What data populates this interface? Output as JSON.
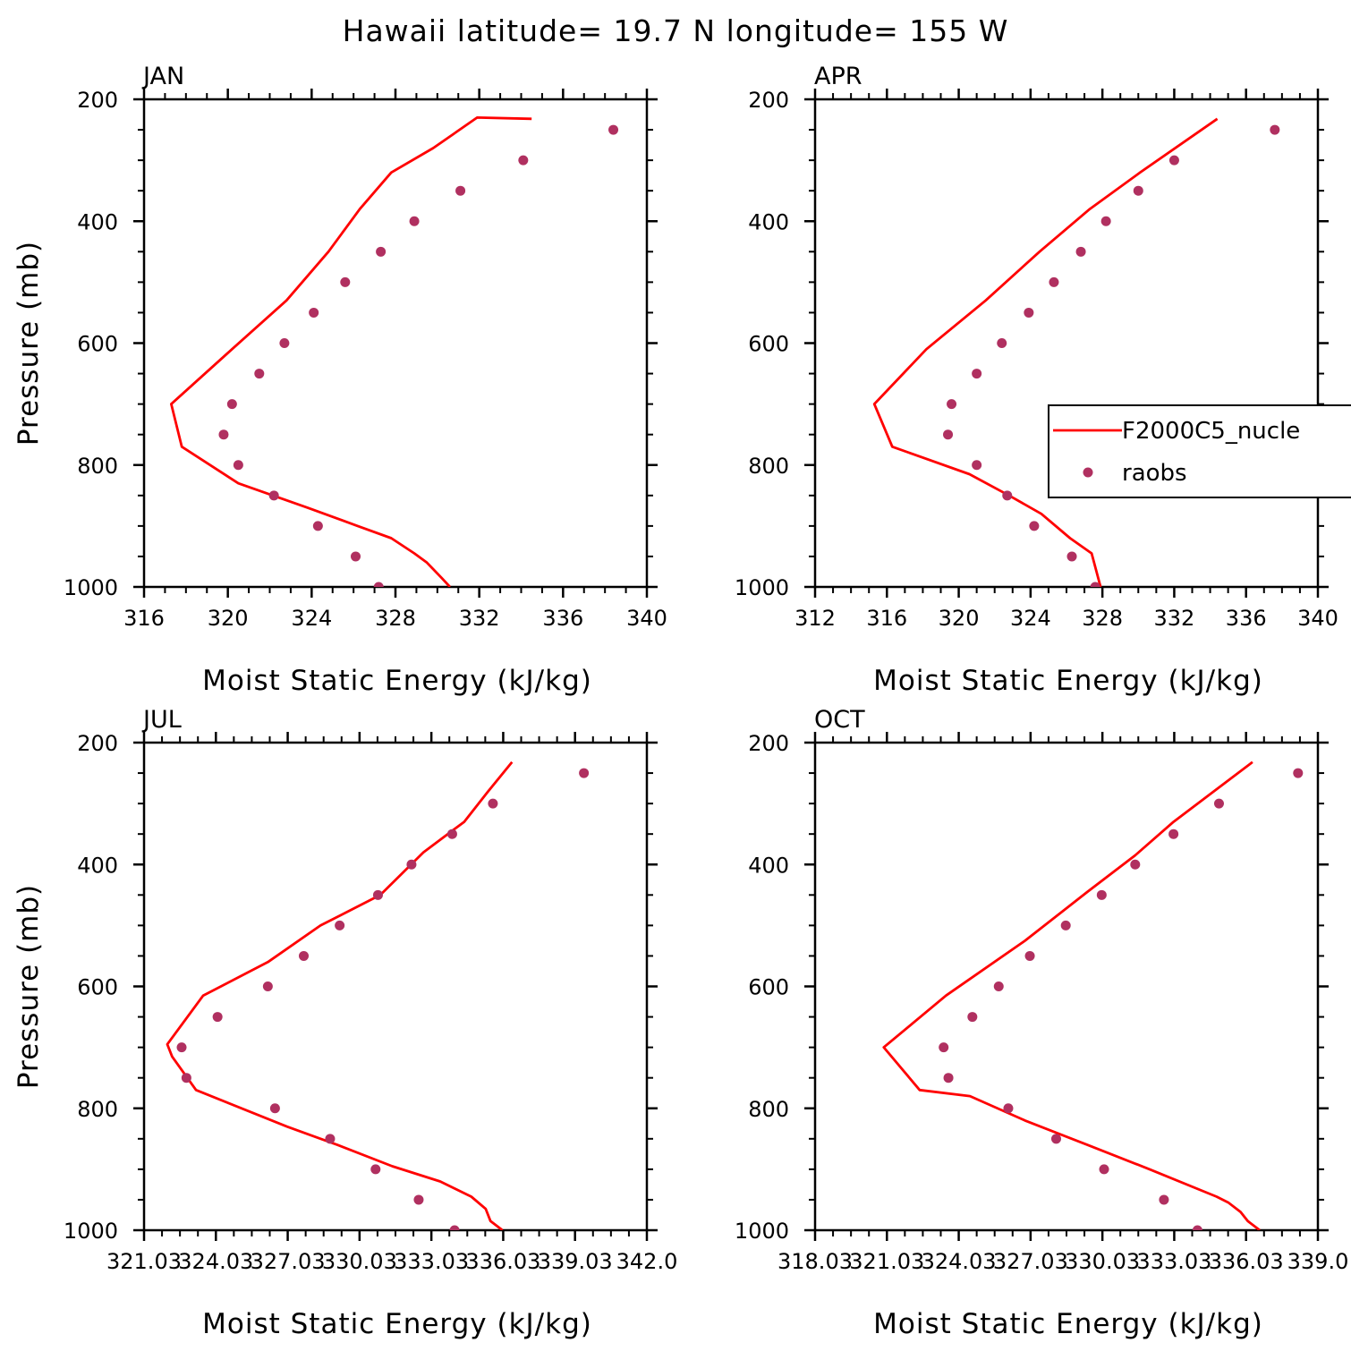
{
  "figure": {
    "title": "Hawaii  latitude= 19.7 N longitude= 155 W"
  },
  "colors": {
    "model": "#ff0000",
    "obs": "#b03060",
    "axis": "#000000"
  },
  "legend": {
    "panel": "APR",
    "entries": [
      {
        "name": "F2000C5_nucle",
        "kind": "line"
      },
      {
        "name": "raobs",
        "kind": "marker"
      }
    ]
  },
  "chart_data": [
    {
      "type": "line",
      "panel_title": "JAN",
      "xlabel": "Moist Static Energy (kJ/kg)",
      "ylabel": "Pressure (mb)",
      "xlim": [
        316,
        340
      ],
      "ylim": [
        1000,
        200
      ],
      "x_ticks": [
        316,
        320,
        324,
        328,
        332,
        336,
        340
      ],
      "x_tick_labels": [
        "316",
        "320",
        "324",
        "328",
        "332",
        "336",
        "340"
      ],
      "y_ticks": [
        200,
        400,
        600,
        800,
        1000
      ],
      "y_tick_labels": [
        "200",
        "400",
        "600",
        "800",
        "1000"
      ],
      "series": [
        {
          "name": "F2000C5_nucle",
          "style": "line",
          "x": [
            330.6,
            330.2,
            329.5,
            328.9,
            327.8,
            326.2,
            323.8,
            320.5,
            317.8,
            317.3,
            320.2,
            322.8,
            324.8,
            326.3,
            327.8,
            329.8,
            331.9,
            334.5
          ],
          "y": [
            1000,
            985,
            960,
            945,
            920,
            900,
            870,
            830,
            770,
            700,
            610,
            530,
            450,
            380,
            320,
            280,
            230,
            232
          ]
        },
        {
          "name": "raobs",
          "style": "marker",
          "x": [
            327.2,
            326.1,
            324.3,
            322.2,
            320.5,
            319.8,
            320.2,
            321.5,
            322.7,
            324.1,
            325.6,
            327.3,
            328.9,
            331.1,
            334.1,
            338.4
          ],
          "y": [
            1000,
            950,
            900,
            850,
            800,
            750,
            700,
            650,
            600,
            550,
            500,
            450,
            400,
            350,
            300,
            250
          ]
        }
      ]
    },
    {
      "type": "line",
      "panel_title": "APR",
      "xlabel": "Moist Static Energy (kJ/kg)",
      "ylabel": "",
      "xlim": [
        312,
        340
      ],
      "ylim": [
        1000,
        200
      ],
      "x_ticks": [
        312,
        316,
        320,
        324,
        328,
        332,
        336,
        340
      ],
      "x_tick_labels": [
        "312",
        "316",
        "320",
        "324",
        "328",
        "332",
        "336",
        "340"
      ],
      "y_ticks": [
        200,
        400,
        600,
        800,
        1000
      ],
      "y_tick_labels": [
        "200",
        "400",
        "600",
        "800",
        "1000"
      ],
      "series": [
        {
          "name": "F2000C5_nucle",
          "style": "line",
          "x": [
            327.9,
            327.4,
            326.2,
            324.6,
            322.8,
            320.6,
            316.3,
            315.3,
            318.2,
            321.5,
            324.5,
            327.3,
            330.1,
            334.4
          ],
          "y": [
            1000,
            945,
            920,
            880,
            850,
            815,
            770,
            700,
            610,
            530,
            450,
            380,
            320,
            232
          ]
        },
        {
          "name": "raobs",
          "style": "marker",
          "x": [
            327.6,
            326.3,
            324.2,
            322.7,
            321.0,
            319.4,
            319.6,
            321.0,
            322.4,
            323.9,
            325.3,
            326.8,
            328.2,
            330.0,
            332.0,
            337.6
          ],
          "y": [
            1000,
            950,
            900,
            850,
            800,
            750,
            700,
            650,
            600,
            550,
            500,
            450,
            400,
            350,
            300,
            250
          ]
        }
      ]
    },
    {
      "type": "line",
      "panel_title": "JUL",
      "xlabel": "Moist Static Energy (kJ/kg)",
      "ylabel": "Pressure (mb)",
      "xlim": [
        321.03,
        342.03
      ],
      "ylim": [
        1000,
        200
      ],
      "x_ticks": [
        321.03,
        324.03,
        327.03,
        330.03,
        333.03,
        336.03,
        339.03,
        342.03
      ],
      "x_tick_labels": [
        "321.03",
        "324.03",
        "327.03",
        "330.03",
        "333.03",
        "336.03",
        "339.03",
        "342.0"
      ],
      "y_ticks": [
        200,
        400,
        600,
        800,
        1000
      ],
      "y_tick_labels": [
        "200",
        "400",
        "600",
        "800",
        "1000"
      ],
      "series": [
        {
          "name": "F2000C5_nucle",
          "style": "line",
          "x": [
            336.0,
            335.5,
            335.3,
            334.7,
            333.4,
            331.4,
            329.1,
            327.0,
            323.2,
            322.2,
            322.0,
            323.5,
            326.2,
            328.4,
            330.9,
            332.7,
            334.4,
            335.4,
            336.4
          ],
          "y": [
            1000,
            985,
            965,
            945,
            920,
            895,
            860,
            830,
            770,
            715,
            695,
            615,
            560,
            500,
            450,
            380,
            330,
            280,
            232
          ]
        },
        {
          "name": "raobs",
          "style": "marker",
          "x": [
            334.0,
            332.5,
            330.7,
            328.8,
            326.5,
            322.8,
            322.6,
            324.1,
            326.2,
            327.7,
            329.2,
            330.8,
            332.2,
            333.9,
            335.6,
            339.4
          ],
          "y": [
            1000,
            950,
            900,
            850,
            800,
            750,
            700,
            650,
            600,
            550,
            500,
            450,
            400,
            350,
            300,
            250
          ]
        }
      ]
    },
    {
      "type": "line",
      "panel_title": "OCT",
      "xlabel": "Moist Static Energy (kJ/kg)",
      "ylabel": "",
      "xlim": [
        318.03,
        339.03
      ],
      "ylim": [
        1000,
        200
      ],
      "x_ticks": [
        318.03,
        321.03,
        324.03,
        327.03,
        330.03,
        333.03,
        336.03,
        339.03
      ],
      "x_tick_labels": [
        "318.03",
        "321.03",
        "324.03",
        "327.03",
        "330.03",
        "333.03",
        "336.03",
        "339.0"
      ],
      "y_ticks": [
        200,
        400,
        600,
        800,
        1000
      ],
      "y_tick_labels": [
        "200",
        "400",
        "600",
        "800",
        "1000"
      ],
      "series": [
        {
          "name": "F2000C5_nucle",
          "style": "line",
          "x": [
            336.6,
            336.1,
            335.8,
            335.3,
            334.8,
            332.0,
            329.4,
            326.8,
            324.5,
            322.4,
            320.9,
            323.5,
            326.8,
            329.4,
            331.4,
            333.0,
            336.3
          ],
          "y": [
            1000,
            985,
            970,
            955,
            945,
            900,
            860,
            820,
            780,
            770,
            700,
            615,
            525,
            445,
            385,
            330,
            232
          ]
        },
        {
          "name": "raobs",
          "style": "marker",
          "x": [
            334.0,
            332.6,
            330.1,
            328.1,
            326.1,
            323.6,
            323.4,
            324.6,
            325.7,
            327.0,
            328.5,
            330.0,
            331.4,
            333.0,
            334.9,
            338.2
          ],
          "y": [
            1000,
            950,
            900,
            850,
            800,
            750,
            700,
            650,
            600,
            550,
            500,
            450,
            400,
            350,
            300,
            250
          ]
        }
      ]
    }
  ]
}
